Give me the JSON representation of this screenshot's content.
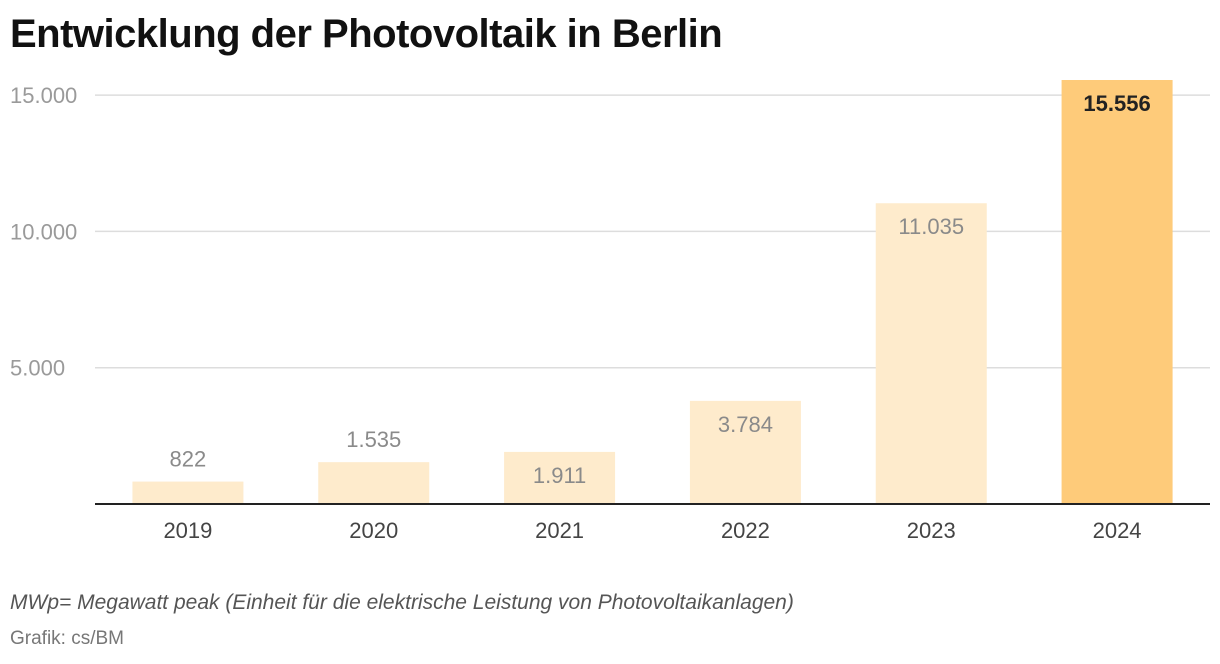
{
  "title": "Entwicklung der Photovoltaik in Berlin",
  "note": "MWp= Megawatt peak (Einheit für die elektrische Leistung von Photovoltaikanlagen)",
  "source": "Grafik: cs/BM",
  "colors": {
    "bar": "#feebcc",
    "bar_highlight": "#fecb7a",
    "grid": "#dddddd",
    "axis": "#222222"
  },
  "chart_data": {
    "type": "bar",
    "title": "Entwicklung der Photovoltaik in Berlin",
    "xlabel": "",
    "ylabel": "",
    "categories": [
      "2019",
      "2020",
      "2021",
      "2022",
      "2023",
      "2024"
    ],
    "values": [
      822,
      1535,
      1911,
      3784,
      11035,
      15556
    ],
    "value_labels": [
      "822",
      "1.535",
      "1.911",
      "3.784",
      "11.035",
      "15.556"
    ],
    "highlight_index": 5,
    "yticks": [
      5000,
      10000,
      15000
    ],
    "ytick_labels": [
      "5.000",
      "10.000",
      "15.000"
    ],
    "ylim": [
      0,
      15556
    ],
    "grid": true
  }
}
